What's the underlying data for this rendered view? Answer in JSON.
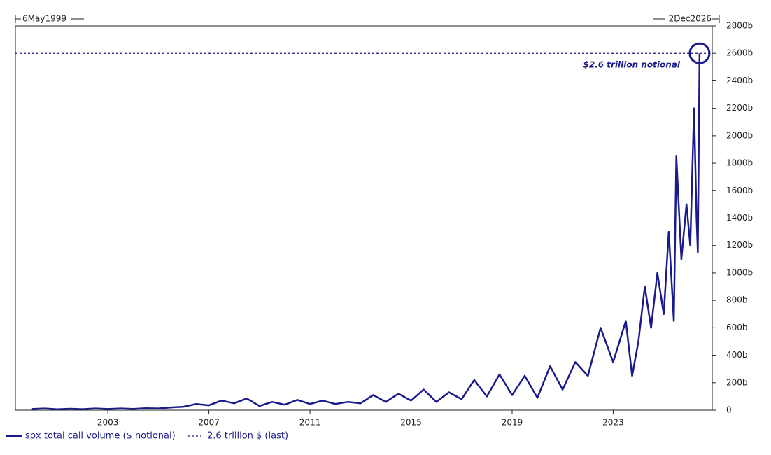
{
  "chart_data": {
    "type": "line",
    "xlim": [
      {
        "value": 1999.34,
        "label": "6May1999"
      },
      {
        "value": 2026.92,
        "label": "2Dec2026"
      }
    ],
    "xticks": [
      2003,
      2007,
      2011,
      2015,
      2019,
      2023
    ],
    "ylim": [
      0,
      2800
    ],
    "yticks": [
      0,
      {
        "value": 200,
        "label": "200b"
      },
      {
        "value": 400,
        "label": "400b"
      },
      {
        "value": 600,
        "label": "600b"
      },
      {
        "value": 800,
        "label": "800b"
      },
      {
        "value": 1000,
        "label": "1000b"
      },
      {
        "value": 1200,
        "label": "1200b"
      },
      {
        "value": 1400,
        "label": "1400b"
      },
      {
        "value": 1600,
        "label": "1600b"
      },
      {
        "value": 1800,
        "label": "1800b"
      },
      {
        "value": 2000,
        "label": "2000b"
      },
      {
        "value": 2200,
        "label": "2200b"
      },
      {
        "value": 2400,
        "label": "2400b"
      },
      {
        "value": 2600,
        "label": "2600b"
      },
      {
        "value": 2800,
        "label": "2800b"
      }
    ],
    "x": [
      2000.0,
      2000.5,
      2001.0,
      2001.5,
      2002.0,
      2002.5,
      2003.0,
      2003.5,
      2004.0,
      2004.5,
      2005.0,
      2005.5,
      2006.0,
      2006.5,
      2007.0,
      2007.5,
      2008.0,
      2008.5,
      2009.0,
      2009.5,
      2010.0,
      2010.5,
      2011.0,
      2011.5,
      2012.0,
      2012.5,
      2013.0,
      2013.5,
      2014.0,
      2014.5,
      2015.0,
      2015.5,
      2016.0,
      2016.5,
      2017.0,
      2017.5,
      2018.0,
      2018.5,
      2019.0,
      2019.5,
      2020.0,
      2020.5,
      2021.0,
      2021.5,
      2022.0,
      2022.5,
      2023.0,
      2023.5,
      2023.75,
      2024.0,
      2024.25,
      2024.5,
      2024.75,
      2025.0,
      2025.2,
      2025.4,
      2025.5,
      2025.7,
      2025.9,
      2026.05,
      2026.2,
      2026.3,
      2026.35,
      2026.42
    ],
    "series": [
      {
        "name": "spx total call volume ($ notional)",
        "color": "#1a1a8c",
        "values": [
          8,
          12,
          6,
          10,
          7,
          12,
          8,
          12,
          9,
          14,
          12,
          20,
          25,
          45,
          35,
          70,
          50,
          85,
          30,
          60,
          40,
          75,
          45,
          70,
          45,
          60,
          50,
          110,
          60,
          120,
          70,
          150,
          60,
          130,
          80,
          220,
          100,
          260,
          110,
          250,
          90,
          320,
          150,
          350,
          250,
          600,
          350,
          650,
          250,
          500,
          900,
          600,
          1000,
          700,
          1300,
          650,
          1850,
          1100,
          1500,
          1200,
          2200,
          1400,
          1150,
          2600
        ]
      }
    ],
    "reference_line": {
      "value": 2600,
      "label": "2.6 trillion $ (last)",
      "color": "#1a1a8c"
    },
    "annotation": "$2.6 trillion notional"
  }
}
